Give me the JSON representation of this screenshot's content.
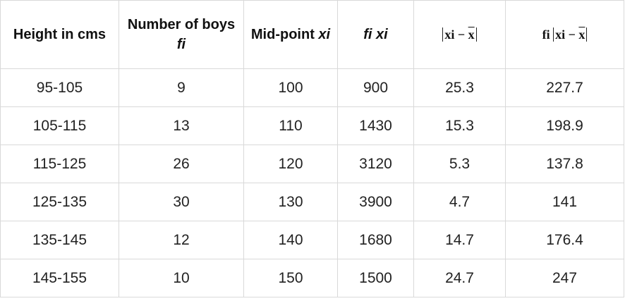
{
  "headers": {
    "height": "Height in cms",
    "boys_line1": "Number of boys",
    "boys_line2": "fi",
    "midpoint_text": "Mid-point",
    "midpoint_var": "xi",
    "fixi_f": "fi",
    "fixi_x": "xi",
    "dev_x": "xi",
    "dev_minus": "−",
    "dev_mean": "x",
    "fdev_f": "fi",
    "fdev_x": "xi",
    "fdev_minus": "−",
    "fdev_mean": "x"
  },
  "rows": [
    {
      "height": "95-105",
      "boys": "9",
      "mid": "100",
      "fx": "900",
      "dev": "25.3",
      "fdev": "227.7"
    },
    {
      "height": "105-115",
      "boys": "13",
      "mid": "110",
      "fx": "1430",
      "dev": "15.3",
      "fdev": "198.9"
    },
    {
      "height": "115-125",
      "boys": "26",
      "mid": "120",
      "fx": "3120",
      "dev": "5.3",
      "fdev": "137.8"
    },
    {
      "height": "125-135",
      "boys": "30",
      "mid": "130",
      "fx": "3900",
      "dev": "4.7",
      "fdev": "141"
    },
    {
      "height": "135-145",
      "boys": "12",
      "mid": "140",
      "fx": "1680",
      "dev": "14.7",
      "fdev": "176.4"
    },
    {
      "height": "145-155",
      "boys": "10",
      "mid": "150",
      "fx": "1500",
      "dev": "24.7",
      "fdev": "247"
    }
  ]
}
